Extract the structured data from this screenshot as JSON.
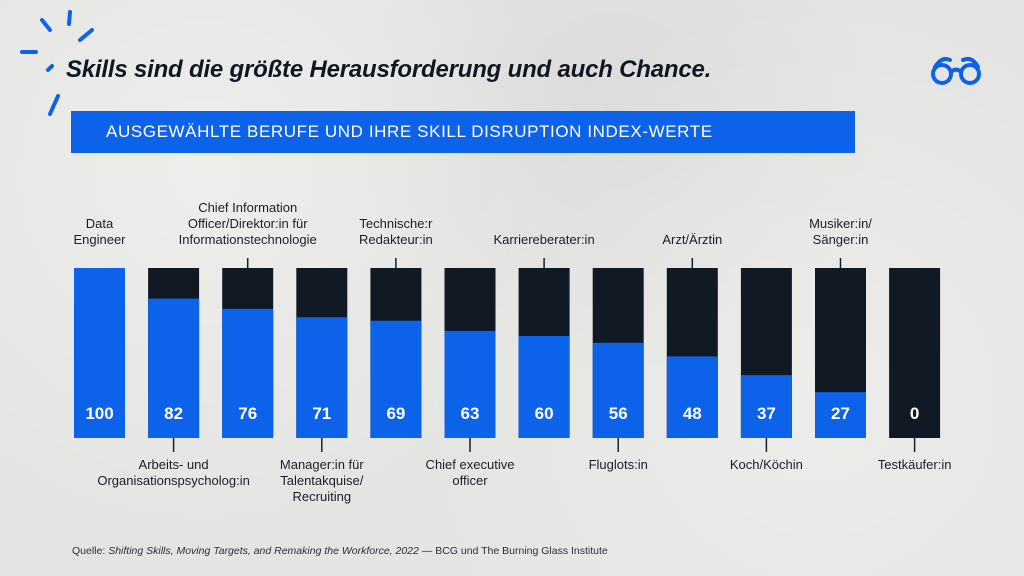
{
  "title": "Skills sind die größte Herausforderung und auch Chance.",
  "banner": "AUSGEWÄHLTE BERUFE UND IHRE SKILL DISRUPTION INDEX-WERTE",
  "colors": {
    "accent": "#0d62ea",
    "dark": "#111a24",
    "background": "#e4e4e2"
  },
  "icons": [
    "glasses-icon",
    "sparkle-rays-icon"
  ],
  "source": {
    "prefix": "Quelle: ",
    "title": "Shifting Skills, Moving Targets, and Remaking the Workforce, 2022",
    "suffix": " — BCG und The Burning Glass Institute"
  },
  "chart_data": {
    "type": "bar",
    "stacked_full": true,
    "title": "",
    "xlabel": "",
    "ylabel": "",
    "ylim": [
      0,
      100
    ],
    "categories": [
      "Data Engineer",
      "Arbeits- und Organisationspsycholog:in",
      "Chief Information Officer/Direktor:in für Informationstechnologie",
      "Manager:in für Talentakquise/ Recruiting",
      "Technische:r Redakteur:in",
      "Chief executive officer",
      "Karriereberater:in",
      "Fluglots:in",
      "Arzt/Ärztin",
      "Koch/Köchin",
      "Musiker:in/ Sänger:in",
      "Testkäufer:in"
    ],
    "label_lines": [
      [
        "Data",
        "Engineer"
      ],
      [
        "Arbeits- und",
        "Organisationspsycholog:in"
      ],
      [
        "Chief Information",
        "Officer/Direktor:in für",
        "Informationstechnologie"
      ],
      [
        "Manager:in für",
        "Talentakquise/",
        "Recruiting"
      ],
      [
        "Technische:r",
        "Redakteur:in"
      ],
      [
        "Chief executive",
        "officer"
      ],
      [
        "Karriereberater:in"
      ],
      [
        "Fluglots:in"
      ],
      [
        "Arzt/Ärztin"
      ],
      [
        "Koch/Köchin"
      ],
      [
        "Musiker:in/",
        "Sänger:in"
      ],
      [
        "Testkäufer:in"
      ]
    ],
    "label_position": [
      "top",
      "bottom",
      "top",
      "bottom",
      "top",
      "bottom",
      "top",
      "bottom",
      "top",
      "bottom",
      "top",
      "bottom"
    ],
    "values": [
      100,
      82,
      76,
      71,
      69,
      63,
      60,
      56,
      48,
      37,
      27,
      0
    ],
    "value_labels": [
      "100",
      "82",
      "76",
      "71",
      "69",
      "63",
      "60",
      "56",
      "48",
      "37",
      "27",
      "0"
    ]
  }
}
